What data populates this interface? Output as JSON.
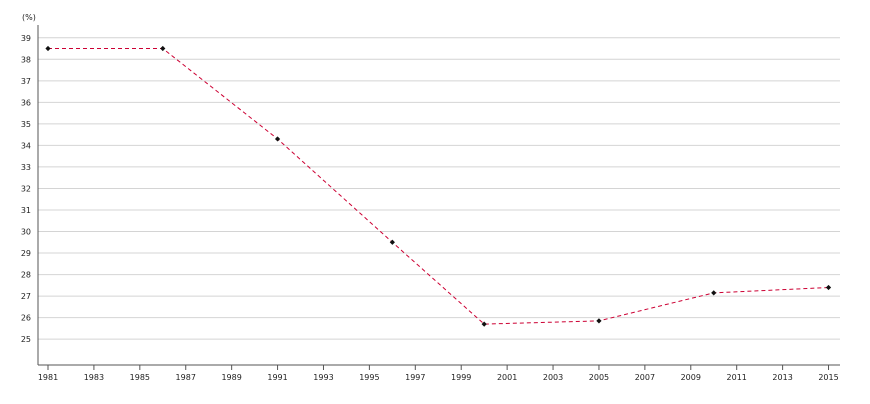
{
  "chart_data": {
    "type": "line",
    "unit_label": "(%)",
    "title": "",
    "xlabel": "",
    "ylabel": "",
    "x_ticks": [
      1981,
      1983,
      1985,
      1987,
      1989,
      1991,
      1993,
      1995,
      1997,
      1999,
      2001,
      2003,
      2005,
      2007,
      2009,
      2011,
      2013,
      2015
    ],
    "y_ticks": [
      25,
      26,
      27,
      28,
      29,
      30,
      31,
      32,
      33,
      34,
      35,
      36,
      37,
      38,
      39
    ],
    "xlim": [
      1981,
      2015.5
    ],
    "ylim": [
      23.8,
      39.5
    ],
    "grid": true,
    "series": [
      {
        "color": "#cc0033",
        "marker_color": "#111111",
        "line_style": "dashed",
        "x": [
          1981,
          1986,
          1991,
          1996,
          2000,
          2005,
          2010,
          2015
        ],
        "values": [
          38.5,
          38.5,
          34.3,
          29.5,
          25.7,
          25.85,
          27.15,
          27.4
        ]
      }
    ]
  }
}
